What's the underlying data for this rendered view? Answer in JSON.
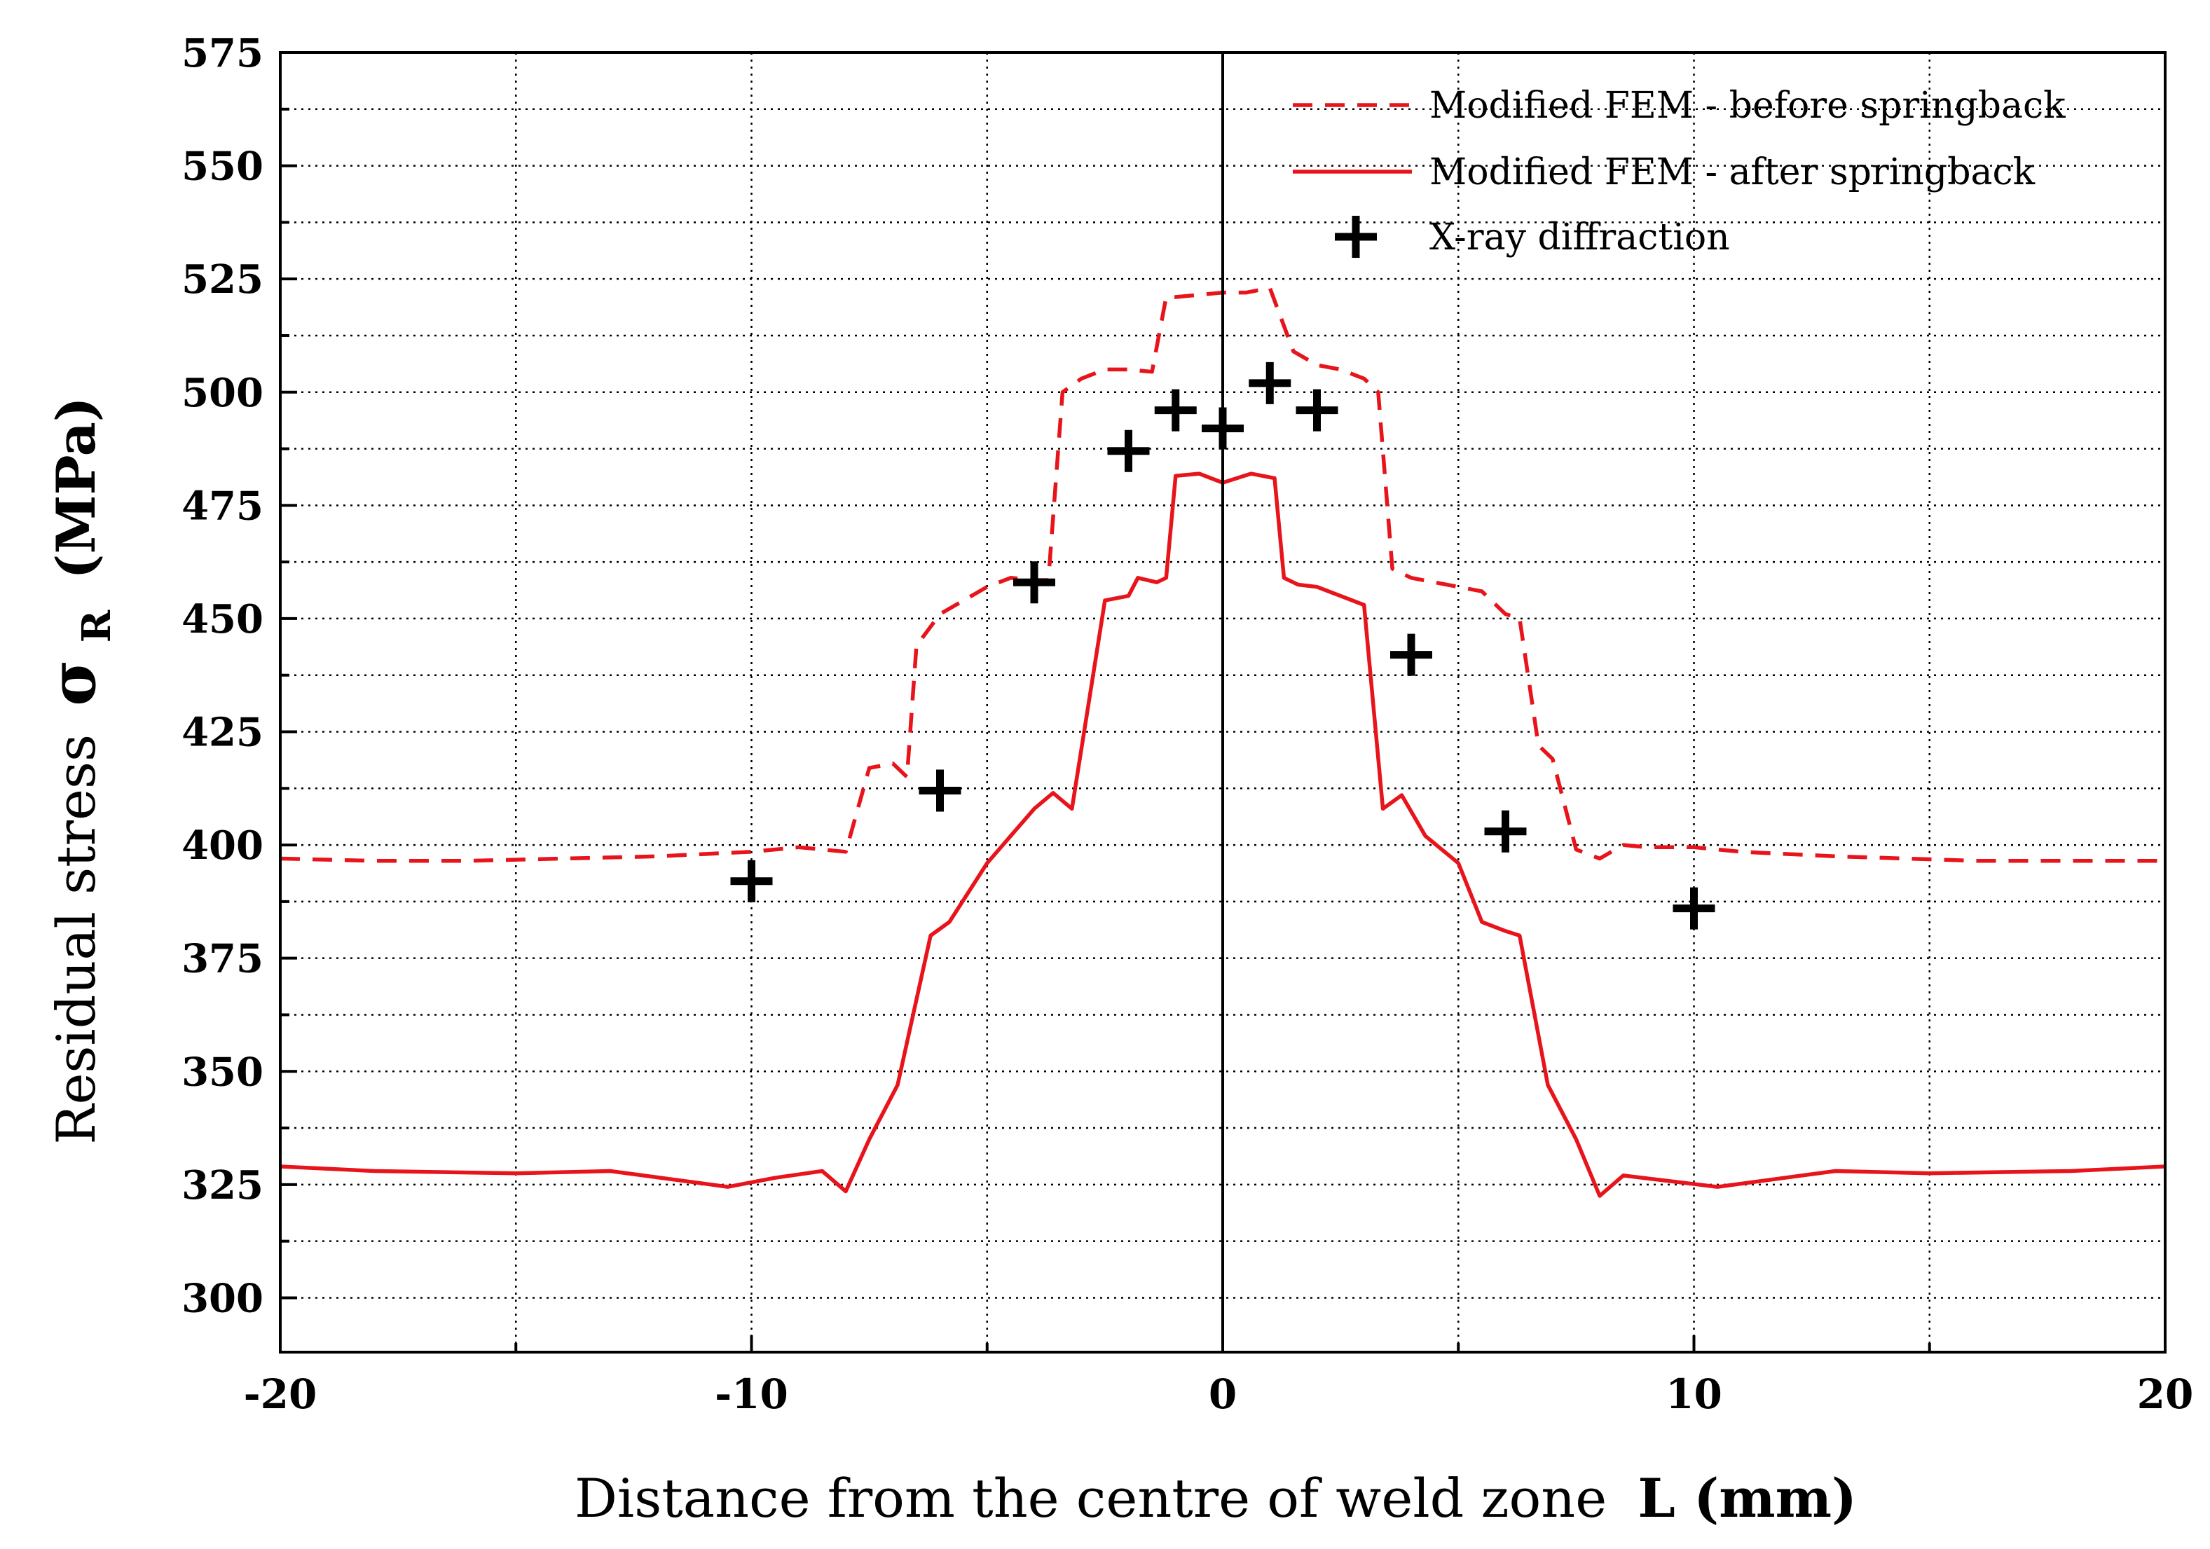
{
  "chart_data": {
    "type": "line",
    "title": "",
    "xlabel": "Distance from the centre of weld zone",
    "xlabel_bold": "L (mm)",
    "ylabel": "Residual stress",
    "ylabel_symbol": "σ",
    "ylabel_subscript": "R",
    "ylabel_unit": "(MPa)",
    "xlim": [
      -20,
      20
    ],
    "ylim": [
      288,
      575
    ],
    "x_ticks": [
      -20,
      -10,
      0,
      10,
      20
    ],
    "y_ticks": [
      300,
      325,
      350,
      375,
      400,
      425,
      450,
      475,
      500,
      525,
      550,
      575
    ],
    "grid": true,
    "legend_position": "top-right",
    "series": [
      {
        "name": "Modified FEM - before springback",
        "style": "dashed",
        "color": "#e8141b",
        "x": [
          -20,
          -18,
          -16,
          -14,
          -12,
          -10,
          -9,
          -8,
          -7.5,
          -7,
          -6.7,
          -6.5,
          -6,
          -5,
          -4.5,
          -4,
          -3.7,
          -3.4,
          -3,
          -2.5,
          -2,
          -1.5,
          -1.2,
          -1,
          0,
          0.5,
          1,
          1.5,
          2,
          2.5,
          3,
          3.3,
          3.6,
          4,
          4.5,
          5,
          5.5,
          6,
          6.3,
          6.7,
          7,
          7.5,
          8,
          8.5,
          9,
          10,
          11,
          13,
          16,
          20
        ],
        "y": [
          397,
          396.5,
          396.5,
          397,
          397.5,
          398.5,
          399.5,
          398.5,
          417,
          418,
          415,
          444,
          451,
          457,
          459,
          458.5,
          458.5,
          500,
          503,
          505,
          505,
          504.5,
          521,
          521,
          522,
          522,
          523,
          509,
          506,
          505,
          503,
          500,
          461,
          459,
          458,
          457,
          456,
          451,
          450,
          422,
          419,
          399,
          397,
          400,
          399.5,
          399.5,
          398.5,
          397.5,
          396.5,
          396.5
        ]
      },
      {
        "name": "Modified FEM - after springback",
        "style": "solid",
        "color": "#e8141b",
        "x": [
          -20,
          -18,
          -15,
          -13,
          -10.5,
          -9.5,
          -8.5,
          -8,
          -7.5,
          -6.9,
          -6.2,
          -5.8,
          -5,
          -4.5,
          -4,
          -3.6,
          -3.2,
          -2.5,
          -2,
          -1.8,
          -1.4,
          -1.2,
          -1,
          -0.5,
          0,
          0.6,
          1.1,
          1.3,
          1.6,
          2,
          2.5,
          3,
          3.4,
          3.8,
          4.3,
          5,
          5.5,
          6,
          6.3,
          6.9,
          7.5,
          8,
          8.5,
          10.5,
          13,
          15,
          18,
          20
        ],
        "y": [
          329,
          328,
          327.5,
          328,
          324.5,
          326.5,
          328,
          323.5,
          335,
          347,
          380,
          383,
          396,
          402,
          408,
          411.5,
          408,
          454,
          455,
          459,
          458,
          459,
          481.5,
          482,
          480,
          482,
          481,
          459,
          457.5,
          457,
          455,
          453,
          408,
          411,
          402,
          396,
          383,
          381,
          380,
          347,
          335,
          322.5,
          327,
          324.5,
          328,
          327.5,
          328,
          329
        ]
      },
      {
        "name": "X-ray diffraction",
        "style": "markers",
        "marker": "plus",
        "color": "#000000",
        "x": [
          -10,
          -6,
          -4,
          -2,
          -1,
          0,
          1,
          2,
          4,
          6,
          10
        ],
        "y": [
          392,
          412,
          458,
          487,
          496,
          492,
          502,
          496,
          442,
          403,
          386
        ]
      }
    ]
  }
}
